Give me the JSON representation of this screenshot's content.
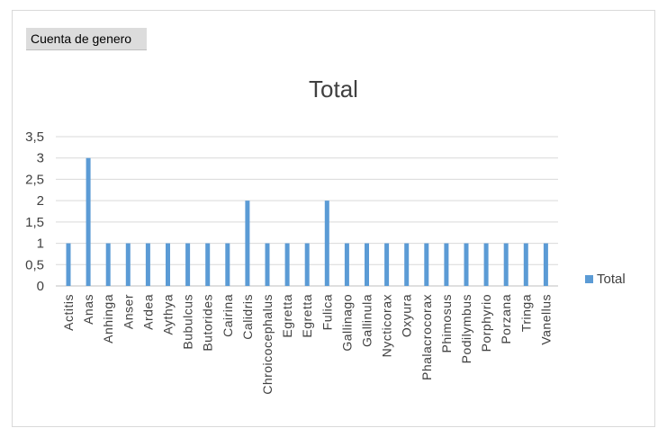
{
  "pivot_field_label": "Cuenta de genero",
  "chart_data": {
    "type": "bar",
    "title": "Total",
    "xlabel": "",
    "ylabel": "",
    "ylim": [
      0,
      3.5
    ],
    "yticks": [
      "0",
      "0,5",
      "1",
      "1,5",
      "2",
      "2,5",
      "3",
      "3,5"
    ],
    "categories": [
      "Actitis",
      "Anas",
      "Anhinga",
      "Anser",
      "Ardea",
      "Aythya",
      "Bubulcus",
      "Butorides",
      "Cairina",
      "Calidris",
      "Chroicocephalus",
      "Egretta",
      "Egretta",
      "Fulica",
      "Gallinago",
      "Gallinula",
      "Nycticorax",
      "Oxyura",
      "Phalacrocorax",
      "Phimosus",
      "Podilymbus",
      "Porphyrio",
      "Porzana",
      "Tringa",
      "Vanellus"
    ],
    "series": [
      {
        "name": "Total",
        "values": [
          1,
          3,
          1,
          1,
          1,
          1,
          1,
          1,
          1,
          2,
          1,
          1,
          1,
          2,
          1,
          1,
          1,
          1,
          1,
          1,
          1,
          1,
          1,
          1,
          1
        ]
      }
    ],
    "color": "#5b9bd5",
    "grid": true,
    "legend_position": "right"
  }
}
